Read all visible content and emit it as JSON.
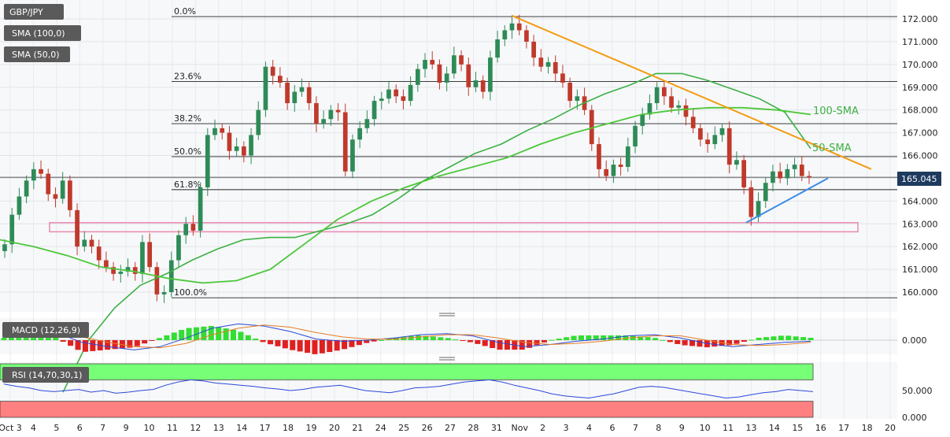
{
  "legend": {
    "symbol": "GBP/JPY",
    "sma100": "SMA (100,0)",
    "sma50": "SMA (50,0)",
    "macd": "MACD (12,26,9)",
    "rsi": "RSI (14,70,30,1)"
  },
  "colors": {
    "bull": "#2e8b57",
    "bear": "#c0392b",
    "sma50": "#3cb043",
    "sma100": "#4cc73a",
    "resistance": "#f39c12",
    "support": "#3a8ee6",
    "zone": "#e88ab0",
    "macd": "#2c49d8",
    "signal": "#e67e22",
    "hist_pos": "#33dd33",
    "hist_neg": "#e02020",
    "rsi_line": "#2c49d8",
    "rsi_over": "#77ff77",
    "rsi_under": "#ff8080"
  },
  "price_label": "165.045",
  "annotations": {
    "sma100": "100-SMA",
    "sma50": "50-SMA"
  },
  "chart_data": [
    {
      "type": "candlestick",
      "title": "GBP/JPY",
      "ylim": [
        159.5,
        172.5
      ],
      "y_ticks": [
        "172.000",
        "171.000",
        "170.000",
        "169.000",
        "168.000",
        "167.000",
        "166.000",
        "165.000",
        "164.000",
        "163.000",
        "162.000",
        "161.000",
        "160.000"
      ],
      "x_ticks": [
        "Oct 3",
        "4",
        "5",
        "6",
        "7",
        "9",
        "10",
        "11",
        "12",
        "13",
        "14",
        "17",
        "18",
        "19",
        "20",
        "21",
        "24",
        "25",
        "26",
        "27",
        "28",
        "31",
        "Nov",
        "2",
        "3",
        "4",
        "6",
        "7",
        "8",
        "9",
        "10",
        "11",
        "13",
        "14",
        "15",
        "16",
        "17",
        "18",
        "20"
      ],
      "fibonacci": [
        {
          "label": "0.0%",
          "value": 172.1
        },
        {
          "label": "23.6%",
          "value": 169.25
        },
        {
          "label": "38.2%",
          "value": 167.4
        },
        {
          "label": "50.0%",
          "value": 165.95
        },
        {
          "label": "61.8%",
          "value": 164.5
        },
        {
          "label": "100.0%",
          "value": 159.75
        }
      ],
      "close_series": [
        162.1,
        163.4,
        164.2,
        164.9,
        165.4,
        165.2,
        164.3,
        164.1,
        164.9,
        163.6,
        162.0,
        162.3,
        162.0,
        161.4,
        161.1,
        160.8,
        160.9,
        161.1,
        160.8,
        162.2,
        161.1,
        159.9,
        160.0,
        161.4,
        162.5,
        163.0,
        162.7,
        164.6,
        166.9,
        167.2,
        167.0,
        166.2,
        166.4,
        166.0,
        166.9,
        168.0,
        169.9,
        169.5,
        169.2,
        168.3,
        168.8,
        169.0,
        168.3,
        167.4,
        167.6,
        168.0,
        167.9,
        165.3,
        166.7,
        167.2,
        167.6,
        168.4,
        168.5,
        168.9,
        168.6,
        168.4,
        169.1,
        169.8,
        170.2,
        170.0,
        169.2,
        169.6,
        170.4,
        170.0,
        169.0,
        169.3,
        168.8,
        170.3,
        171.1,
        171.5,
        171.8,
        171.5,
        171.0,
        170.3,
        169.9,
        170.1,
        169.6,
        169.2,
        168.4,
        168.6,
        168.0,
        166.5,
        165.4,
        165.1,
        165.6,
        165.5,
        166.4,
        167.3,
        167.8,
        168.3,
        169.0,
        168.6,
        168.1,
        168.2,
        167.7,
        167.2,
        166.7,
        166.5,
        166.9,
        167.2,
        165.6,
        165.8,
        164.6,
        163.3,
        164.0,
        164.8,
        165.3,
        165.0,
        165.4,
        165.6,
        165.1,
        165.05
      ],
      "sma50": [
        155.6,
        157.9,
        159.3,
        160.3,
        160.8,
        161.4,
        161.9,
        162.3,
        162.4,
        162.4,
        162.7,
        163.0,
        163.4,
        164.1,
        164.9,
        165.5,
        166.1,
        166.5,
        167.1,
        167.6,
        168.2,
        168.7,
        169.1,
        169.6,
        169.6,
        169.3,
        168.9,
        168.5,
        167.9,
        166.3
      ],
      "sma100": [
        162.3,
        162.0,
        161.6,
        161.1,
        160.9,
        160.6,
        160.4,
        160.5,
        161.0,
        162.1,
        163.2,
        164.0,
        164.6,
        165.1,
        165.5,
        165.9,
        166.5,
        167.0,
        167.4,
        167.8,
        168.0,
        168.1,
        168.1,
        168.0,
        167.8
      ]
    },
    {
      "type": "line",
      "title": "MACD (12,26,9)",
      "series": [
        {
          "name": "MACD",
          "values": [
            0.4,
            0.9,
            0.7,
            -0.2,
            -0.6,
            -0.9,
            -0.6,
            0.2,
            1.1,
            1.5,
            1.3,
            0.8,
            0.1,
            -0.1,
            0.0,
            0.2,
            0.5,
            0.6,
            0.4,
            -0.2,
            -0.6,
            -0.4,
            -0.1,
            0.1,
            0.4,
            0.5,
            0.2,
            -0.3,
            -0.6,
            -0.4,
            -0.2,
            -0.1
          ]
        },
        {
          "name": "Signal",
          "values": [
            0.3,
            0.6,
            0.6,
            0.3,
            -0.2,
            -0.6,
            -0.7,
            -0.3,
            0.5,
            1.1,
            1.4,
            1.2,
            0.7,
            0.3,
            0.1,
            0.1,
            0.3,
            0.5,
            0.5,
            0.2,
            -0.2,
            -0.4,
            -0.3,
            -0.1,
            0.2,
            0.4,
            0.4,
            0.0,
            -0.4,
            -0.5,
            -0.4,
            -0.2
          ]
        }
      ],
      "y_ticks": [
        "0.000"
      ]
    },
    {
      "type": "line",
      "title": "RSI (14,70,30,1)",
      "y_ticks": [
        "50.000",
        "0.000"
      ],
      "ylim": [
        0,
        100
      ],
      "bands": {
        "overbought": 70,
        "oversold": 30
      },
      "values": [
        62,
        58,
        55,
        50,
        48,
        50,
        52,
        47,
        50,
        45,
        47,
        50,
        52,
        60,
        66,
        70,
        68,
        64,
        62,
        60,
        58,
        55,
        53,
        50,
        52,
        56,
        58,
        60,
        55,
        50,
        48,
        46,
        50,
        55,
        56,
        58,
        62,
        66,
        68,
        70,
        66,
        60,
        55,
        50,
        44,
        40,
        38,
        36,
        40,
        44,
        50,
        56,
        58,
        56,
        52,
        48,
        44,
        40,
        36,
        38,
        42,
        46,
        48,
        52,
        50,
        48
      ]
    }
  ]
}
